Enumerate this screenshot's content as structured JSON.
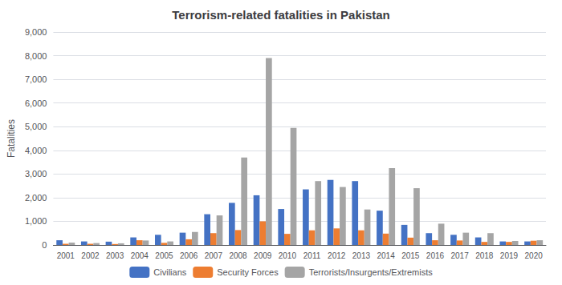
{
  "chart_data": {
    "type": "bar",
    "title": "Terrorism-related fatalities in Pakistan",
    "ylabel": "Fatalities",
    "categories": [
      "2001",
      "2002",
      "2003",
      "2004",
      "2005",
      "2006",
      "2007",
      "2008",
      "2009",
      "2010",
      "2011",
      "2012",
      "2013",
      "2014",
      "2015",
      "2016",
      "2017",
      "2018",
      "2019",
      "2020"
    ],
    "series": [
      {
        "name": "Civilians",
        "color": "#4472c4",
        "values": [
          200,
          150,
          140,
          320,
          430,
          520,
          1300,
          1780,
          2100,
          1520,
          2350,
          2750,
          2700,
          1450,
          850,
          500,
          430,
          320,
          150,
          150
        ]
      },
      {
        "name": "Security Forces",
        "color": "#ed7d31",
        "values": [
          50,
          50,
          40,
          200,
          90,
          240,
          500,
          630,
          1000,
          470,
          620,
          700,
          620,
          480,
          310,
          200,
          190,
          130,
          130,
          180
        ]
      },
      {
        "name": "Terrorists/Insurgents/Extremists",
        "color": "#a5a5a5",
        "values": [
          100,
          80,
          70,
          190,
          150,
          550,
          1250,
          3700,
          7900,
          4950,
          2700,
          2450,
          1500,
          3250,
          2400,
          900,
          520,
          500,
          170,
          200
        ]
      }
    ],
    "ylim": [
      0,
      9000
    ],
    "yticks": [
      0,
      1000,
      2000,
      3000,
      4000,
      5000,
      6000,
      7000,
      8000,
      9000
    ],
    "grid": true,
    "legend": "bottom"
  }
}
